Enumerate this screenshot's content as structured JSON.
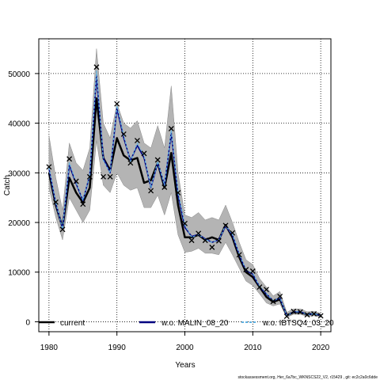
{
  "chart_data": {
    "type": "line",
    "xlabel": "Years",
    "ylabel": "Catch",
    "xlim": [
      1978.5,
      2021.5
    ],
    "ylim": [
      -2000,
      57000
    ],
    "x_ticks": [
      1980,
      1990,
      2000,
      2010,
      2020
    ],
    "y_ticks": [
      0,
      10000,
      20000,
      30000,
      40000,
      50000
    ],
    "x_tick_labels": [
      "1980",
      "1990",
      "2000",
      "2010",
      "2020"
    ],
    "y_tick_labels": [
      "0",
      "10000",
      "20000",
      "30000",
      "40000",
      "50000"
    ],
    "grid": true,
    "legend_position": "bottom",
    "years": [
      1980,
      1981,
      1982,
      1983,
      1984,
      1985,
      1986,
      1987,
      1988,
      1989,
      1990,
      1991,
      1992,
      1993,
      1994,
      1995,
      1996,
      1997,
      1998,
      1999,
      2000,
      2001,
      2002,
      2003,
      2004,
      2005,
      2006,
      2007,
      2008,
      2009,
      2010,
      2011,
      2012,
      2013,
      2014,
      2015,
      2016,
      2017,
      2018,
      2019,
      2020
    ],
    "observed": [
      31200,
      24100,
      18600,
      32800,
      28300,
      23700,
      29200,
      51300,
      29200,
      29200,
      43900,
      37800,
      32000,
      36500,
      33900,
      26400,
      32600,
      27100,
      38900,
      26000,
      19800,
      16400,
      17800,
      16400,
      15000,
      16300,
      19400,
      17900,
      13500,
      10500,
      10200,
      7000,
      6500,
      4100,
      5100,
      1100,
      2100,
      2000,
      1400,
      1600,
      1200
    ],
    "series": [
      {
        "name": "current",
        "color": "#000000",
        "values": [
          30000,
          23500,
          19000,
          29000,
          26000,
          24000,
          27000,
          45000,
          33000,
          30500,
          37000,
          33500,
          32500,
          33000,
          28000,
          28500,
          32000,
          27000,
          34000,
          23500,
          17000,
          17000,
          17500,
          16500,
          17000,
          16500,
          19500,
          17000,
          13000,
          10000,
          9000,
          7000,
          5000,
          4000,
          4500,
          1300,
          1900,
          1900,
          1500,
          1600,
          1300
        ]
      },
      {
        "name": "w.o. MALIN_08_20",
        "color": "#000080",
        "values": [
          30800,
          23800,
          18800,
          31500,
          27800,
          24400,
          29500,
          49500,
          33000,
          30000,
          43000,
          37000,
          32500,
          35500,
          33000,
          27000,
          32000,
          27500,
          38000,
          25500,
          19000,
          17200,
          17600,
          16700,
          16000,
          16500,
          19300,
          17400,
          13500,
          10300,
          9600,
          7000,
          5600,
          4200,
          4800,
          1200,
          2000,
          2000,
          1500,
          1600,
          1300
        ]
      },
      {
        "name": "w.o. IBTSQ4_03_20",
        "color": "#5fb0e0",
        "values": [
          31000,
          24000,
          18700,
          32000,
          28000,
          24500,
          29500,
          50500,
          32500,
          30000,
          43500,
          37500,
          32300,
          36000,
          33500,
          27000,
          32300,
          27500,
          38500,
          26000,
          19500,
          17000,
          17600,
          16600,
          16000,
          16500,
          19400,
          17600,
          13700,
          10400,
          9800,
          7100,
          5700,
          4200,
          4900,
          1200,
          2000,
          2000,
          1500,
          1600,
          1300
        ]
      }
    ],
    "ci": {
      "lower": [
        27000,
        21000,
        16500,
        25000,
        22500,
        20000,
        22500,
        36500,
        27500,
        26000,
        30000,
        27500,
        26500,
        27000,
        23000,
        23000,
        25500,
        21500,
        26000,
        17500,
        14000,
        14200,
        14800,
        13800,
        13800,
        13500,
        16000,
        13500,
        10800,
        8200,
        7300,
        5600,
        3800,
        3200,
        3600,
        900,
        1500,
        1500,
        1100,
        1200,
        1000
      ],
      "upper": [
        37500,
        29000,
        22500,
        36000,
        32000,
        30500,
        35000,
        55000,
        40000,
        37000,
        44000,
        40000,
        39000,
        40500,
        36000,
        35000,
        39500,
        35000,
        47500,
        30000,
        21500,
        21000,
        22000,
        20500,
        21000,
        20500,
        23500,
        20000,
        16000,
        12500,
        11500,
        8700,
        7000,
        5200,
        6100,
        1900,
        2600,
        2600,
        2000,
        2100,
        1700
      ],
      "fill_color": "#b4b4b4"
    }
  },
  "legend": {
    "items": [
      {
        "label": "current",
        "color": "#000000",
        "dashed": false
      },
      {
        "label": "w.o. MALIN_08_20",
        "color": "#000080",
        "dashed": false
      },
      {
        "label": "w.o. IBTSQ4_03_20",
        "color": "#5fb0e0",
        "dashed": true
      }
    ]
  },
  "footer": {
    "text": "stockassessment.org, Her_6a7bc_WKNSCS22_V2, r15429 , git: ec2c2a0c6dde"
  }
}
